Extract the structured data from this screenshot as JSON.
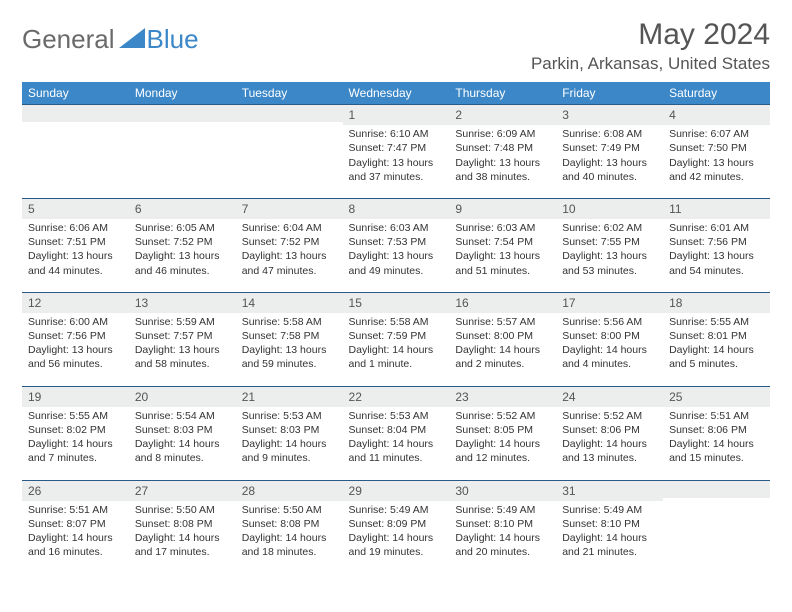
{
  "logo": {
    "text1": "General",
    "text2": "Blue"
  },
  "title": "May 2024",
  "location": "Parkin, Arkansas, United States",
  "colors": {
    "header_bg": "#3b87c8",
    "header_text": "#ffffff",
    "daynum_bg": "#eceded",
    "border": "#2a5a8a",
    "text": "#333333",
    "title": "#555555"
  },
  "weekdays": [
    "Sunday",
    "Monday",
    "Tuesday",
    "Wednesday",
    "Thursday",
    "Friday",
    "Saturday"
  ],
  "weeks": [
    [
      null,
      null,
      null,
      {
        "n": "1",
        "sr": "6:10 AM",
        "ss": "7:47 PM",
        "dl": "13 hours and 37 minutes."
      },
      {
        "n": "2",
        "sr": "6:09 AM",
        "ss": "7:48 PM",
        "dl": "13 hours and 38 minutes."
      },
      {
        "n": "3",
        "sr": "6:08 AM",
        "ss": "7:49 PM",
        "dl": "13 hours and 40 minutes."
      },
      {
        "n": "4",
        "sr": "6:07 AM",
        "ss": "7:50 PM",
        "dl": "13 hours and 42 minutes."
      }
    ],
    [
      {
        "n": "5",
        "sr": "6:06 AM",
        "ss": "7:51 PM",
        "dl": "13 hours and 44 minutes."
      },
      {
        "n": "6",
        "sr": "6:05 AM",
        "ss": "7:52 PM",
        "dl": "13 hours and 46 minutes."
      },
      {
        "n": "7",
        "sr": "6:04 AM",
        "ss": "7:52 PM",
        "dl": "13 hours and 47 minutes."
      },
      {
        "n": "8",
        "sr": "6:03 AM",
        "ss": "7:53 PM",
        "dl": "13 hours and 49 minutes."
      },
      {
        "n": "9",
        "sr": "6:03 AM",
        "ss": "7:54 PM",
        "dl": "13 hours and 51 minutes."
      },
      {
        "n": "10",
        "sr": "6:02 AM",
        "ss": "7:55 PM",
        "dl": "13 hours and 53 minutes."
      },
      {
        "n": "11",
        "sr": "6:01 AM",
        "ss": "7:56 PM",
        "dl": "13 hours and 54 minutes."
      }
    ],
    [
      {
        "n": "12",
        "sr": "6:00 AM",
        "ss": "7:56 PM",
        "dl": "13 hours and 56 minutes."
      },
      {
        "n": "13",
        "sr": "5:59 AM",
        "ss": "7:57 PM",
        "dl": "13 hours and 58 minutes."
      },
      {
        "n": "14",
        "sr": "5:58 AM",
        "ss": "7:58 PM",
        "dl": "13 hours and 59 minutes."
      },
      {
        "n": "15",
        "sr": "5:58 AM",
        "ss": "7:59 PM",
        "dl": "14 hours and 1 minute."
      },
      {
        "n": "16",
        "sr": "5:57 AM",
        "ss": "8:00 PM",
        "dl": "14 hours and 2 minutes."
      },
      {
        "n": "17",
        "sr": "5:56 AM",
        "ss": "8:00 PM",
        "dl": "14 hours and 4 minutes."
      },
      {
        "n": "18",
        "sr": "5:55 AM",
        "ss": "8:01 PM",
        "dl": "14 hours and 5 minutes."
      }
    ],
    [
      {
        "n": "19",
        "sr": "5:55 AM",
        "ss": "8:02 PM",
        "dl": "14 hours and 7 minutes."
      },
      {
        "n": "20",
        "sr": "5:54 AM",
        "ss": "8:03 PM",
        "dl": "14 hours and 8 minutes."
      },
      {
        "n": "21",
        "sr": "5:53 AM",
        "ss": "8:03 PM",
        "dl": "14 hours and 9 minutes."
      },
      {
        "n": "22",
        "sr": "5:53 AM",
        "ss": "8:04 PM",
        "dl": "14 hours and 11 minutes."
      },
      {
        "n": "23",
        "sr": "5:52 AM",
        "ss": "8:05 PM",
        "dl": "14 hours and 12 minutes."
      },
      {
        "n": "24",
        "sr": "5:52 AM",
        "ss": "8:06 PM",
        "dl": "14 hours and 13 minutes."
      },
      {
        "n": "25",
        "sr": "5:51 AM",
        "ss": "8:06 PM",
        "dl": "14 hours and 15 minutes."
      }
    ],
    [
      {
        "n": "26",
        "sr": "5:51 AM",
        "ss": "8:07 PM",
        "dl": "14 hours and 16 minutes."
      },
      {
        "n": "27",
        "sr": "5:50 AM",
        "ss": "8:08 PM",
        "dl": "14 hours and 17 minutes."
      },
      {
        "n": "28",
        "sr": "5:50 AM",
        "ss": "8:08 PM",
        "dl": "14 hours and 18 minutes."
      },
      {
        "n": "29",
        "sr": "5:49 AM",
        "ss": "8:09 PM",
        "dl": "14 hours and 19 minutes."
      },
      {
        "n": "30",
        "sr": "5:49 AM",
        "ss": "8:10 PM",
        "dl": "14 hours and 20 minutes."
      },
      {
        "n": "31",
        "sr": "5:49 AM",
        "ss": "8:10 PM",
        "dl": "14 hours and 21 minutes."
      },
      null
    ]
  ],
  "labels": {
    "sunrise": "Sunrise:",
    "sunset": "Sunset:",
    "daylight": "Daylight:"
  }
}
